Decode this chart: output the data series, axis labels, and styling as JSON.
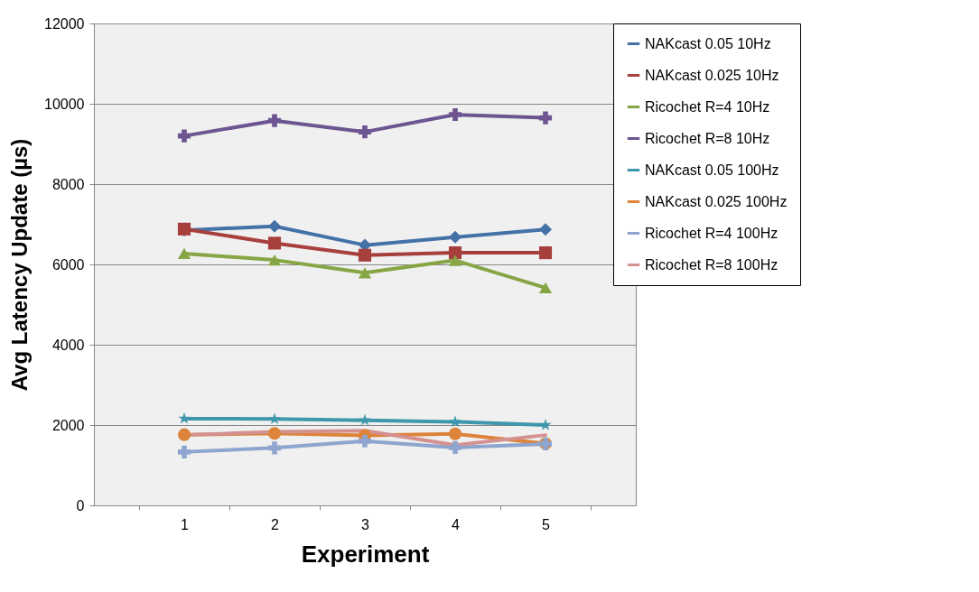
{
  "chart_data": {
    "type": "line",
    "xlabel": "Experiment",
    "ylabel": "Avg Latency Update (µs)",
    "categories": [
      "1",
      "2",
      "3",
      "4",
      "5"
    ],
    "series": [
      {
        "name": "NAKcast 0.05 10Hz",
        "color": "#4472a8",
        "marker": "diamond",
        "values": [
          6850,
          6950,
          6480,
          6680,
          6870
        ]
      },
      {
        "name": "NAKcast 0.025 10Hz",
        "color": "#a7403d",
        "marker": "square",
        "values": [
          6880,
          6530,
          6230,
          6290,
          6290
        ]
      },
      {
        "name": "Ricochet R=4 10Hz",
        "color": "#86a544",
        "marker": "triangle",
        "values": [
          6270,
          6110,
          5790,
          6100,
          5420
        ]
      },
      {
        "name": "Ricochet R=8 10Hz",
        "color": "#6c5590",
        "marker": "cross",
        "values": [
          9200,
          9580,
          9300,
          9730,
          9650
        ]
      },
      {
        "name": "NAKcast 0.05 100Hz",
        "color": "#3e97ac",
        "marker": "star",
        "values": [
          2160,
          2150,
          2120,
          2080,
          2000
        ]
      },
      {
        "name": "NAKcast 0.025 100Hz",
        "color": "#dd833a",
        "marker": "circle",
        "values": [
          1760,
          1790,
          1740,
          1780,
          1540
        ]
      },
      {
        "name": "Ricochet R=4 100Hz",
        "color": "#8ea6cf",
        "marker": "cross",
        "values": [
          1330,
          1430,
          1600,
          1440,
          1530
        ]
      },
      {
        "name": "Ricochet R=8 100Hz",
        "color": "#d49191",
        "marker": "none",
        "values": [
          1750,
          1830,
          1860,
          1500,
          1750
        ]
      }
    ],
    "ylim": [
      0,
      12000
    ],
    "yticks": [
      0,
      2000,
      4000,
      6000,
      8000,
      10000,
      12000
    ],
    "grid": "y",
    "legend": "right"
  }
}
